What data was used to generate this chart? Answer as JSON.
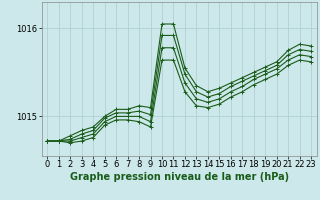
{
  "title": "",
  "xlabel": "Graphe pression niveau de la mer (hPa)",
  "ylabel": "",
  "background_color": "#cce8ea",
  "plot_bg_color": "#cce8ea",
  "line_color": "#1a5c1a",
  "grid_color": "#aacccc",
  "xlim": [
    -0.5,
    23.5
  ],
  "ylim": [
    1014.55,
    1016.3
  ],
  "yticks": [
    1015,
    1016
  ],
  "xticks": [
    0,
    1,
    2,
    3,
    4,
    5,
    6,
    7,
    8,
    9,
    10,
    11,
    12,
    13,
    14,
    15,
    16,
    17,
    18,
    19,
    20,
    21,
    22,
    23
  ],
  "series": [
    [
      1014.72,
      1014.72,
      1014.78,
      1014.84,
      1014.88,
      1015.0,
      1015.08,
      1015.08,
      1015.12,
      1015.1,
      1016.05,
      1016.05,
      1015.55,
      1015.35,
      1015.28,
      1015.32,
      1015.38,
      1015.44,
      1015.5,
      1015.56,
      1015.62,
      1015.75,
      1015.82,
      1015.8
    ],
    [
      1014.72,
      1014.72,
      1014.74,
      1014.8,
      1014.84,
      1014.98,
      1015.04,
      1015.04,
      1015.06,
      1015.02,
      1015.92,
      1015.92,
      1015.48,
      1015.28,
      1015.22,
      1015.26,
      1015.34,
      1015.4,
      1015.46,
      1015.52,
      1015.58,
      1015.7,
      1015.76,
      1015.74
    ],
    [
      1014.72,
      1014.72,
      1014.72,
      1014.76,
      1014.8,
      1014.94,
      1015.0,
      1015.0,
      1015.0,
      1014.94,
      1015.78,
      1015.78,
      1015.38,
      1015.2,
      1015.16,
      1015.2,
      1015.28,
      1015.34,
      1015.42,
      1015.48,
      1015.54,
      1015.64,
      1015.7,
      1015.68
    ],
    [
      1014.72,
      1014.72,
      1014.7,
      1014.72,
      1014.76,
      1014.9,
      1014.96,
      1014.96,
      1014.94,
      1014.88,
      1015.64,
      1015.64,
      1015.28,
      1015.12,
      1015.1,
      1015.14,
      1015.22,
      1015.28,
      1015.36,
      1015.42,
      1015.48,
      1015.58,
      1015.64,
      1015.62
    ]
  ],
  "marker": "+",
  "markersize": 3,
  "linewidth": 0.8,
  "xlabel_fontsize": 7,
  "tick_fontsize": 6
}
